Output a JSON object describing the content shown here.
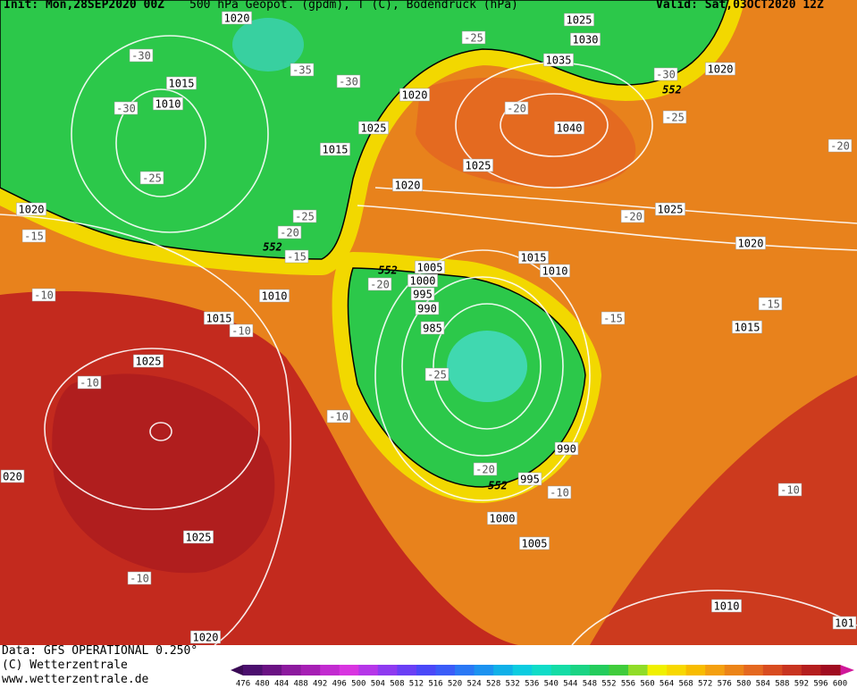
{
  "header": {
    "init": "Init: Mon,28SEP2020 00Z",
    "title": "500 hPa Geopot. (gpdm), T (C), Bodendruck (hPa)",
    "valid": "Valid: Sat,03OCT2020 12Z"
  },
  "isobar_labels": [
    "1020",
    "1025",
    "1030",
    "1035",
    "1020",
    "1015",
    "1010",
    "1020",
    "1040",
    "1025",
    "1015",
    "1025",
    "1020",
    "1025",
    "1020",
    "1020",
    "1015",
    "1010",
    "1005",
    "1000",
    "995",
    "1010",
    "990",
    "1015",
    "1015",
    "985",
    "1025",
    "990",
    "995",
    "020",
    "1000",
    "1005",
    "1025",
    "1010",
    "1020",
    "101"
  ],
  "temperature_labels": [
    "-30",
    "-35",
    "-30",
    "-30",
    "-25",
    "-30",
    "-20",
    "-25",
    "-20",
    "-25",
    "-25",
    "-20",
    "-15",
    "-15",
    "-20",
    "-10",
    "-20",
    "-10",
    "-15",
    "-15",
    "-10",
    "-25",
    "-10",
    "-20",
    "-10",
    "-10",
    "-10"
  ],
  "height_labels": [
    "552",
    "552",
    "552",
    "552"
  ],
  "footer": {
    "data": "Data: GFS OPERATIONAL 0.250°",
    "copyright": "(C) Wetterzentrale",
    "url": "www.wetterzentrale.de"
  },
  "colorbar": {
    "ticks": [
      476,
      480,
      484,
      488,
      492,
      496,
      500,
      504,
      508,
      512,
      516,
      520,
      524,
      528,
      532,
      536,
      540,
      544,
      548,
      552,
      556,
      560,
      564,
      568,
      572,
      576,
      580,
      584,
      588,
      592,
      596,
      600
    ],
    "colors": [
      "#4b0f6e",
      "#6a1283",
      "#8c1a9e",
      "#a61fb4",
      "#c22bd0",
      "#d835e0",
      "#b536e8",
      "#8e3af0",
      "#6a3ff5",
      "#4a48f8",
      "#3a5cf8",
      "#2a78f5",
      "#1c92f0",
      "#10b0e8",
      "#0ccce0",
      "#10dcc8",
      "#14dca6",
      "#1ad484",
      "#24cc5c",
      "#40cc3c",
      "#90dc28",
      "#f0f000",
      "#f8d800",
      "#f8bc00",
      "#f4a010",
      "#ec8418",
      "#e46820",
      "#d84c20",
      "#c83420",
      "#b41e1e",
      "#a00c20"
    ],
    "low_color": "#3a0a55",
    "high_color": "#d0189a"
  }
}
